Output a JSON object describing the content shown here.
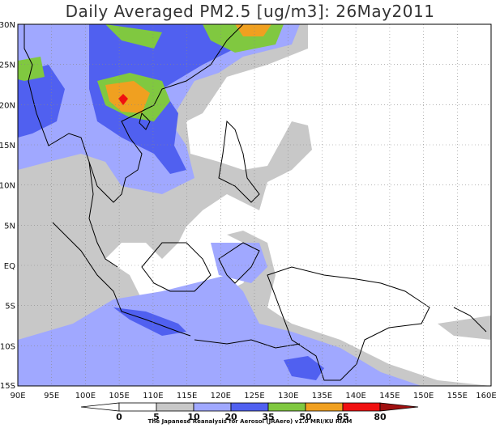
{
  "title": "Daily Averaged PM2.5 [ug/m3]: 26May2011",
  "credit": "The Japanese Reanalysis for Aerosol (JRAero) v1.0 MRI/KU RIAM",
  "lon_labels": [
    "90E",
    "95E",
    "100E",
    "105E",
    "110E",
    "115E",
    "120E",
    "125E",
    "130E",
    "135E",
    "140E",
    "145E",
    "150E",
    "155E",
    "160E"
  ],
  "lat_labels": [
    "30N",
    "25N",
    "20N",
    "15N",
    "10N",
    "5N",
    "EQ",
    "5S",
    "10S",
    "15S"
  ],
  "colorbar": {
    "levels": [
      "0",
      "5",
      "10",
      "20",
      "35",
      "50",
      "65",
      "80"
    ],
    "colors": [
      "#ffffff",
      "#ffffff",
      "#c8c8c8",
      "#a0a8ff",
      "#5060f0",
      "#80c840",
      "#f0a020",
      "#f01010",
      "#a01010"
    ]
  },
  "map": {
    "extent": {
      "lon": [
        90,
        160
      ],
      "lat": [
        -15,
        30
      ]
    },
    "field_colors": {
      "low": "#c8c8c8",
      "mid": "#a0a8ff",
      "high": "#5060f0",
      "green": "#80c840",
      "orange": "#f0a020",
      "red": "#f01010"
    }
  }
}
